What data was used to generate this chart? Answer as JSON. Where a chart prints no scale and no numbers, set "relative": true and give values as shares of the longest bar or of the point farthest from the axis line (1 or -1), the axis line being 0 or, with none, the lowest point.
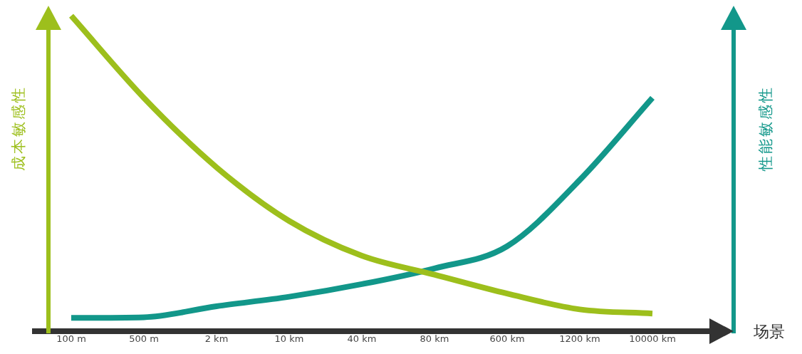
{
  "chart_data": {
    "type": "line",
    "relative": true,
    "xlabel": "场景",
    "ylabel": "成本敏感性",
    "y2label": "性能敏感性",
    "categories": [
      "100 m",
      "500 m",
      "2 km",
      "10 km",
      "40 km",
      "80 km",
      "600 km",
      "1200 km",
      "10000 km"
    ],
    "series": [
      {
        "color": "#9dbf1c",
        "values": [
          1,
          0.74,
          0.52,
          0.35,
          0.24,
          0.18,
          0.12,
          0.07,
          0.057
        ]
      },
      {
        "color": "#12978a",
        "axis": "y2",
        "values": [
          0.043,
          0.045,
          0.08,
          0.11,
          0.15,
          0.2,
          0.27,
          0.48,
          0.74
        ]
      }
    ],
    "grid": false,
    "legend": false,
    "marker": "none",
    "line_style": "solid"
  }
}
